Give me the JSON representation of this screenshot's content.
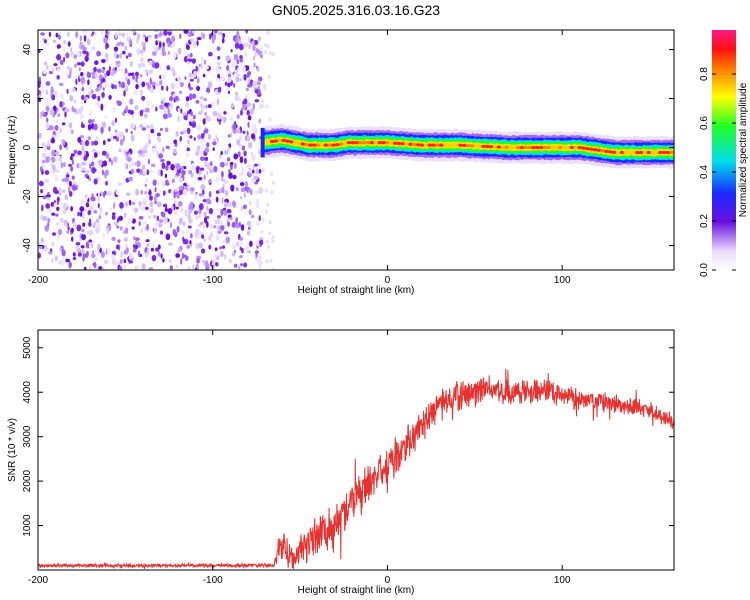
{
  "title": "GN05.2025.316.03.16.G23",
  "colors": {
    "signal_line": "#e8302e",
    "noise_purple": "#6a10e0",
    "frame": "#000000"
  },
  "spectrogram": {
    "chart_data": {
      "type": "heatmap",
      "xlabel": "Height of straight line (km)",
      "ylabel": "Frequency (Hz)",
      "xlim": [
        -200,
        164
      ],
      "ylim": [
        -50,
        48
      ],
      "xticks": [
        -200,
        -100,
        0,
        100
      ],
      "xtick_labels": [
        "-200",
        "-100",
        "0",
        "100"
      ],
      "yticks": [
        -40,
        -20,
        0,
        20,
        40
      ],
      "ytick_labels": [
        "-40",
        "-20",
        "0",
        "20",
        "40"
      ],
      "noise_region_x": [
        -200,
        -72
      ],
      "tone_start_x": -72,
      "tone_frequency_trace": {
        "x": [
          -72,
          -60,
          -45,
          -30,
          -22,
          -10,
          0,
          20,
          40,
          70,
          90,
          110,
          130,
          150,
          164
        ],
        "freq": [
          2,
          3,
          1,
          1,
          2,
          2,
          2,
          1,
          1,
          0,
          0,
          0,
          -2,
          -2,
          -2
        ]
      }
    },
    "colorbar": {
      "label": "Normalized spectral amplitude",
      "ticks": [
        0.0,
        0.2,
        0.4,
        0.6,
        0.8
      ],
      "tick_labels": [
        "0.0",
        "0.2",
        "0.4",
        "0.6",
        "0.8"
      ],
      "range": [
        0,
        0.98
      ]
    }
  },
  "snr_plot": {
    "chart_data": {
      "type": "line",
      "xlabel": "Height of straight line (km)",
      "ylabel": "SNR (10 * v/v)",
      "xlim": [
        -200,
        164
      ],
      "ylim": [
        0,
        5400
      ],
      "xticks": [
        -200,
        -100,
        0,
        100
      ],
      "xtick_labels": [
        "-200",
        "-100",
        "0",
        "100"
      ],
      "yticks": [
        1000,
        2000,
        3000,
        4000,
        5000
      ],
      "ytick_labels": [
        "1000",
        "2000",
        "3000",
        "4000",
        "5000"
      ],
      "series": [
        {
          "name": "SNR",
          "x": [
            -200,
            -150,
            -100,
            -65,
            -60,
            -55,
            -50,
            -40,
            -30,
            -20,
            -10,
            0,
            10,
            20,
            30,
            40,
            50,
            60,
            70,
            80,
            90,
            100,
            110,
            120,
            130,
            140,
            150,
            160,
            164
          ],
          "mean": [
            100,
            100,
            100,
            110,
            600,
            300,
            500,
            800,
            1000,
            1500,
            2000,
            2300,
            2800,
            3300,
            3700,
            3900,
            4000,
            4050,
            4000,
            4050,
            4050,
            3950,
            3850,
            3800,
            3750,
            3700,
            3600,
            3400,
            3300
          ],
          "spread": [
            60,
            60,
            60,
            80,
            700,
            500,
            600,
            700,
            900,
            800,
            700,
            700,
            600,
            600,
            500,
            500,
            500,
            500,
            450,
            450,
            450,
            400,
            400,
            350,
            350,
            300,
            300,
            250,
            250
          ]
        }
      ]
    }
  }
}
